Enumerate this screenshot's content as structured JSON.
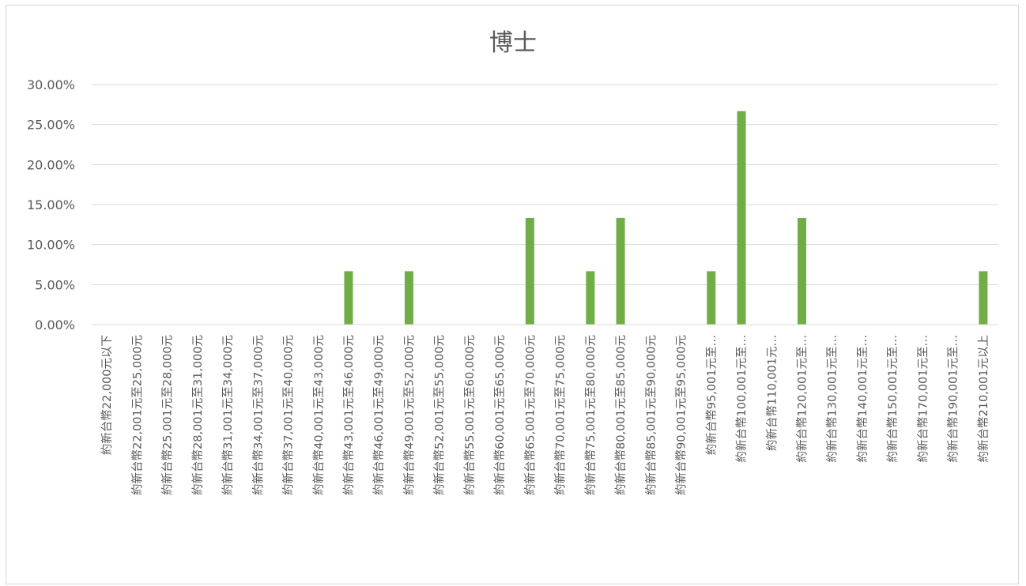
{
  "chart_data": {
    "type": "bar",
    "title": "博士",
    "xlabel": "",
    "ylabel": "",
    "ylim": [
      0,
      0.3
    ],
    "y_tick_labels": [
      "0.00%",
      "5.00%",
      "10.00%",
      "15.00%",
      "20.00%",
      "25.00%",
      "30.00%"
    ],
    "grid": true,
    "legend": "none",
    "bar_color": "#70ad47",
    "categories": [
      "約新台幣22,000元以下",
      "約新台幣22,001元至25,000元",
      "約新台幣25,001元至28,000元",
      "約新台幣28,001元至31,000元",
      "約新台幣31,001元至34,000元",
      "約新台幣34,001元至37,000元",
      "約新台幣37,001元至40,000元",
      "約新台幣40,001元至43,000元",
      "約新台幣43,001元至46,000元",
      "約新台幣46,001元至49,000元",
      "約新台幣49,001元至52,000元",
      "約新台幣52,001元至55,000元",
      "約新台幣55,001元至60,000元",
      "約新台幣60,001元至65,000元",
      "約新台幣65,001元至70,000元",
      "約新台幣70,001元至75,000元",
      "約新台幣75,001元至80,000元",
      "約新台幣80,001元至85,000元",
      "約新台幣85,001元至90,000元",
      "約新台幣90,001元至95,000元",
      "約新台幣95,001元至…",
      "約新台幣100,001元至…",
      "約新台幣110,001元…",
      "約新台幣120,001元至…",
      "約新台幣130,001元至…",
      "約新台幣140,001元至…",
      "約新台幣150,001元至…",
      "約新台幣170,001元至…",
      "約新台幣190,001元至…",
      "約新台幣210,001元以上"
    ],
    "values": [
      0,
      0,
      0,
      0,
      0,
      0,
      0,
      0,
      0.0667,
      0,
      0.0667,
      0,
      0,
      0,
      0.1333,
      0,
      0.0667,
      0.1333,
      0,
      0,
      0.0667,
      0.2667,
      0,
      0.1333,
      0,
      0,
      0,
      0,
      0,
      0.0667
    ]
  }
}
